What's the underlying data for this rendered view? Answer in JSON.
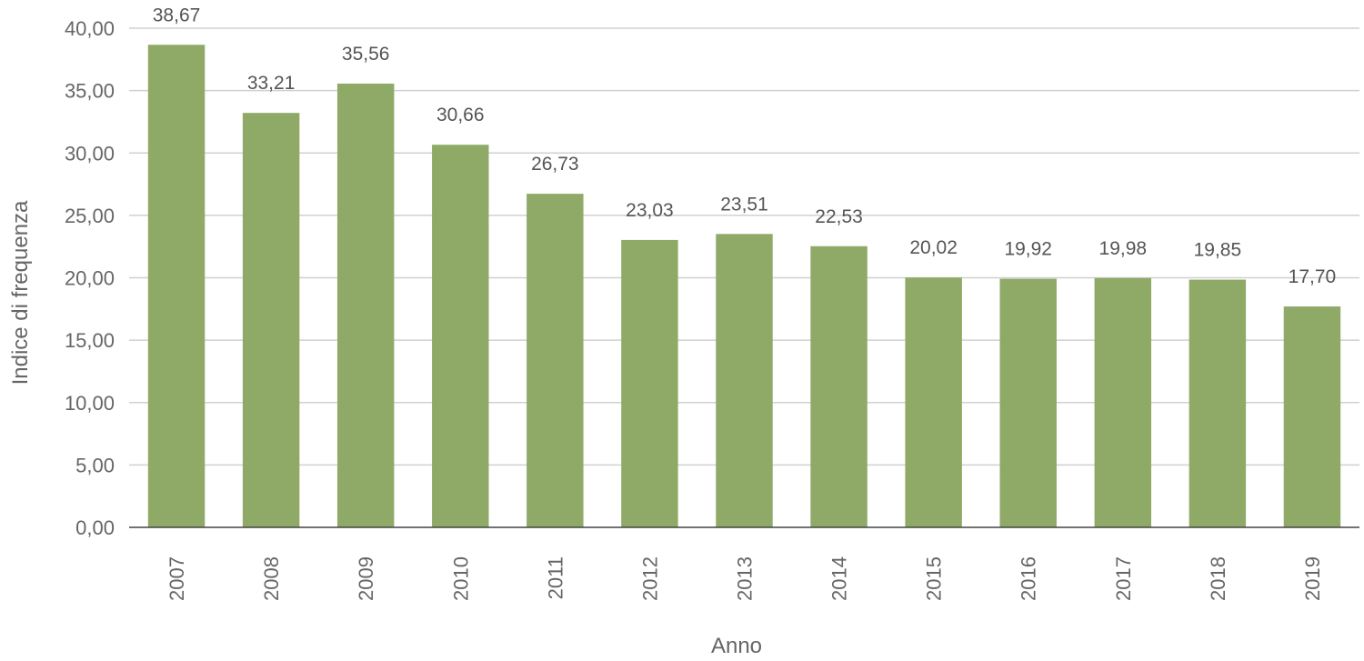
{
  "chart_data": {
    "type": "bar",
    "categories": [
      "2007",
      "2008",
      "2009",
      "2010",
      "2011",
      "2012",
      "2013",
      "2014",
      "2015",
      "2016",
      "2017",
      "2018",
      "2019"
    ],
    "values": [
      38.67,
      33.21,
      35.56,
      30.66,
      26.73,
      23.03,
      23.51,
      22.53,
      20.02,
      19.92,
      19.98,
      19.85,
      17.7
    ],
    "data_labels": [
      "38,67",
      "33,21",
      "35,56",
      "30,66",
      "26,73",
      "23,03",
      "23,51",
      "22,53",
      "20,02",
      "19,92",
      "19,98",
      "19,85",
      "17,70"
    ],
    "xlabel": "Anno",
    "ylabel": "Indice di frequenza",
    "ylim": [
      0,
      40
    ],
    "yticks": [
      0,
      5,
      10,
      15,
      20,
      25,
      30,
      35,
      40
    ],
    "ytick_labels": [
      "0,00",
      "5,00",
      "10,00",
      "15,00",
      "20,00",
      "25,00",
      "30,00",
      "35,00",
      "40,00"
    ],
    "grid": true,
    "bar_color": "#8faa67"
  }
}
